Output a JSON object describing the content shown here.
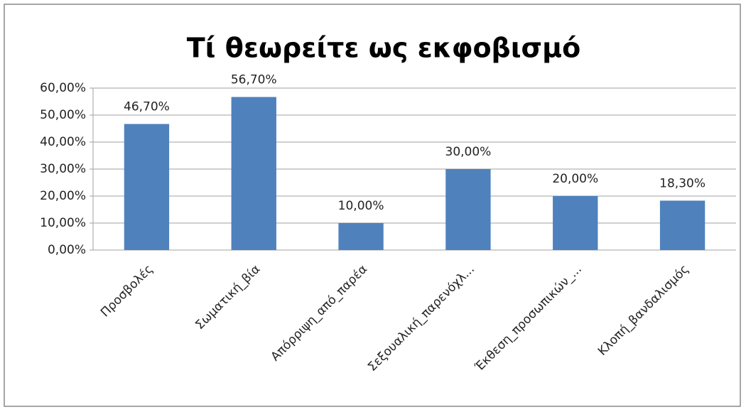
{
  "chart_data": {
    "type": "bar",
    "title": "Τί θεωρείτε ως εκφοβισμό",
    "categories": [
      "Προσβολές",
      "Σωματική_βία",
      "Απόρριψη_από_παρέα",
      "Σεξουαλική_παρενόχλ...",
      "Έκθεση_προσωπικών_...",
      "Κλοπή_βανδαλισμός"
    ],
    "values": [
      46.7,
      56.7,
      10,
      30,
      20,
      18.3
    ],
    "value_labels": [
      "46,70%",
      "56,70%",
      "10,00%",
      "30,00%",
      "20,00%",
      "18,30%"
    ],
    "color": "#4f81bd",
    "ylim": [
      0,
      60
    ],
    "yticks": [
      {
        "value": 0,
        "label": "0,00%"
      },
      {
        "value": 10,
        "label": "10,00%"
      },
      {
        "value": 20,
        "label": "20,00%"
      },
      {
        "value": 30,
        "label": "30,00%"
      },
      {
        "value": 40,
        "label": "40,00%"
      },
      {
        "value": 50,
        "label": "50,00%"
      },
      {
        "value": 60,
        "label": "60,00%"
      }
    ],
    "grid": true
  }
}
